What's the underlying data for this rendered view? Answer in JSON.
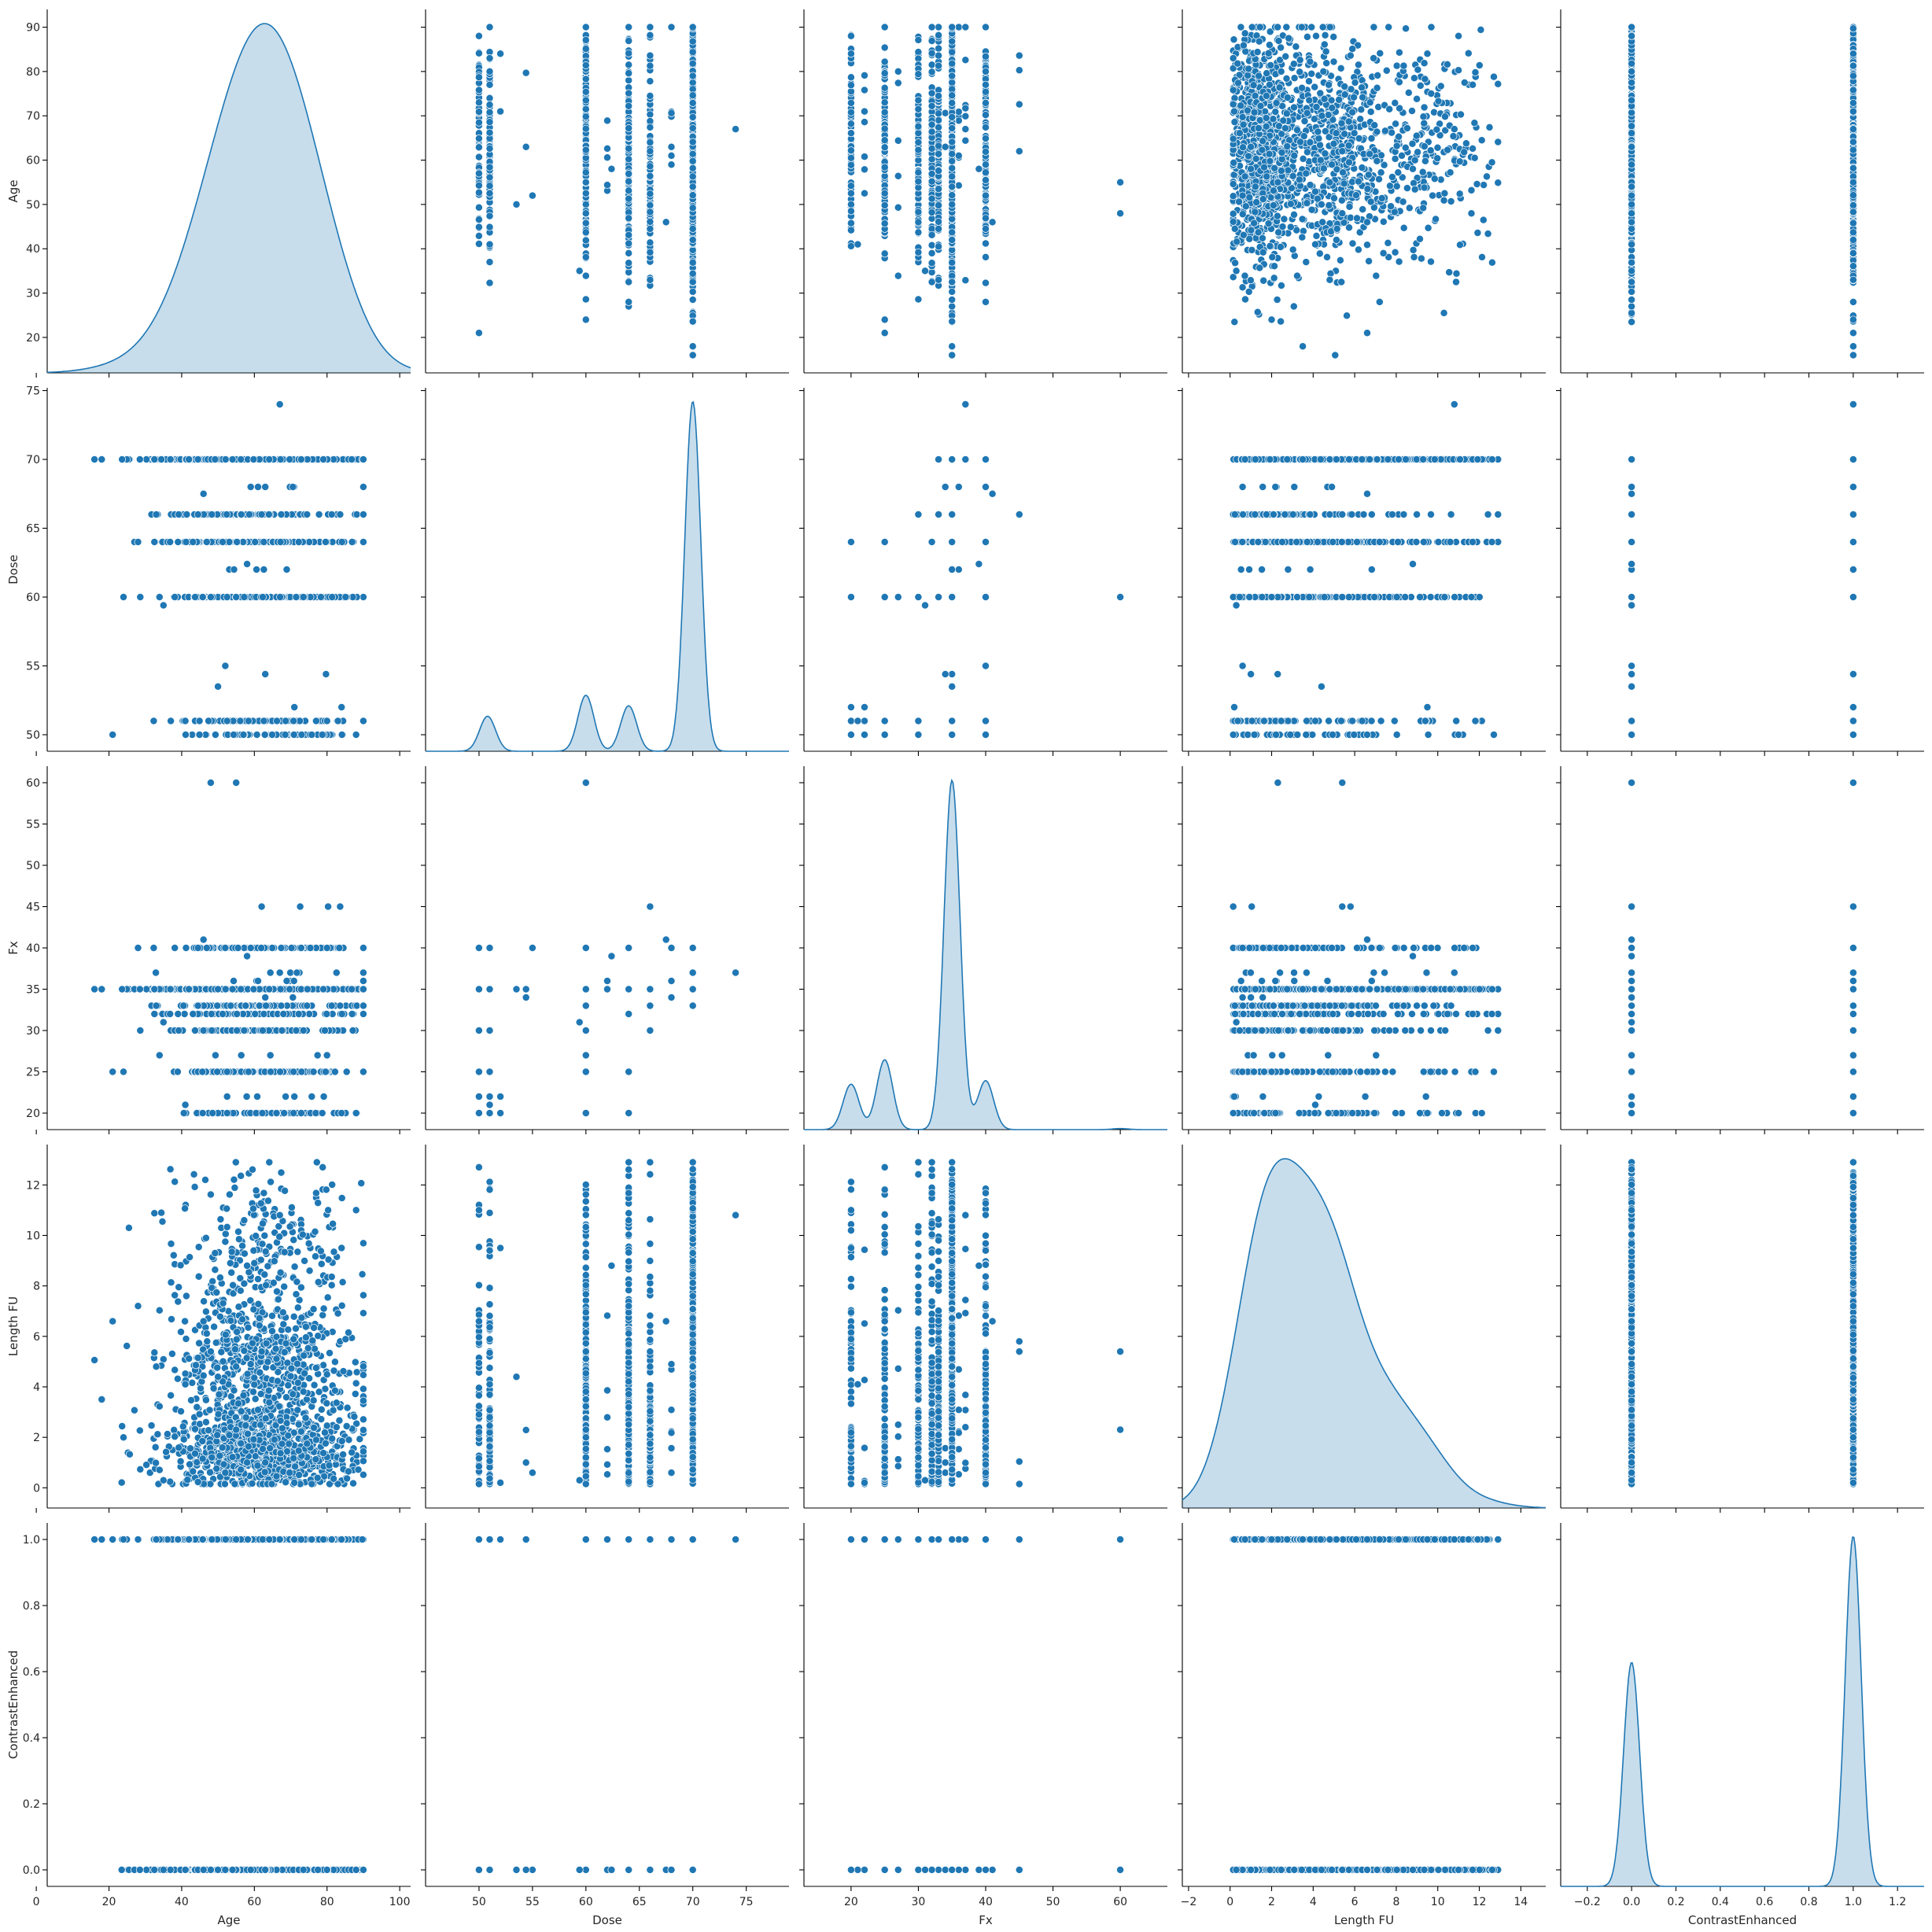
{
  "chart_data": {
    "type": "scatter",
    "layout": "pairplot",
    "variables": [
      "Age",
      "Dose",
      "Fx",
      "Length FU",
      "ContrastEnhanced"
    ],
    "diagonal": "kde",
    "color": "#1f77b4",
    "axes": {
      "Age": {
        "ticks": [
          0,
          20,
          40,
          60,
          80,
          100
        ],
        "tick_labels": [
          "0",
          "20",
          "40",
          "60",
          "80",
          "100"
        ],
        "y_ticks": [
          20,
          30,
          40,
          50,
          60,
          70,
          80,
          90
        ],
        "y_tick_labels": [
          "20",
          "30",
          "40",
          "50",
          "60",
          "70",
          "80",
          "90"
        ],
        "lim": [
          3,
          103
        ],
        "ylim": [
          12,
          94
        ]
      },
      "Dose": {
        "ticks": [
          50,
          55,
          60,
          65,
          70,
          75
        ],
        "tick_labels": [
          "50",
          "55",
          "60",
          "65",
          "70",
          "75"
        ],
        "lim": [
          45,
          79
        ],
        "ylim": [
          48.8,
          75.2
        ]
      },
      "Fx": {
        "ticks": [
          20,
          30,
          40,
          50,
          60
        ],
        "tick_labels": [
          "20",
          "30",
          "40",
          "50",
          "60"
        ],
        "y_ticks": [
          20,
          25,
          30,
          35,
          40,
          45,
          50,
          55,
          60
        ],
        "y_tick_labels": [
          "20",
          "25",
          "30",
          "35",
          "40",
          "45",
          "50",
          "55",
          "60"
        ],
        "lim": [
          13,
          67
        ],
        "ylim": [
          18,
          62
        ]
      },
      "Length FU": {
        "ticks": [
          -2,
          0,
          2,
          4,
          6,
          8,
          10,
          12,
          14
        ],
        "tick_labels": [
          "−2",
          "0",
          "2",
          "4",
          "6",
          "8",
          "10",
          "12",
          "14"
        ],
        "y_ticks": [
          0,
          2,
          4,
          6,
          8,
          10,
          12
        ],
        "y_tick_labels": [
          "0",
          "2",
          "4",
          "6",
          "8",
          "10",
          "12"
        ],
        "lim": [
          -2.3,
          15.2
        ],
        "ylim": [
          -0.8,
          13.6
        ]
      },
      "ContrastEnhanced": {
        "ticks": [
          -0.2,
          0,
          0.2,
          0.4,
          0.6,
          0.8,
          1.0,
          1.2
        ],
        "tick_labels": [
          "−0.2",
          "0.0",
          "0.2",
          "0.4",
          "0.6",
          "0.8",
          "1.0",
          "1.2"
        ],
        "y_ticks": [
          0,
          0.2,
          0.4,
          0.6,
          0.8,
          1.0
        ],
        "y_tick_labels": [
          "0.0",
          "0.2",
          "0.4",
          "0.6",
          "0.8",
          "1.0"
        ],
        "lim": [
          -0.32,
          1.32
        ],
        "ylim": [
          -0.05,
          1.05
        ]
      }
    },
    "distributions": {
      "Age": {
        "kde": [
          [
            19,
            0.02
          ],
          [
            27,
            0.04
          ],
          [
            36,
            0.18
          ],
          [
            45,
            0.55
          ],
          [
            53,
            0.88
          ],
          [
            60,
            1.0
          ],
          [
            66,
            0.92
          ],
          [
            72,
            0.74
          ],
          [
            78,
            0.48
          ],
          [
            84,
            0.22
          ],
          [
            90,
            0.05
          ]
        ]
      },
      "Dose": {
        "levels": [
          50,
          51,
          54.4,
          55,
          59.4,
          60,
          62,
          62.4,
          64,
          66,
          67.5,
          68,
          69.6,
          70,
          74
        ],
        "kde": [
          [
            50.8,
            0.1
          ],
          [
            60,
            0.16
          ],
          [
            64,
            0.13
          ],
          [
            70,
            1.0
          ]
        ]
      },
      "Fx": {
        "levels": [
          20,
          21,
          22,
          25,
          27,
          30,
          31,
          32,
          33,
          34,
          35,
          36,
          37,
          40,
          41,
          45,
          60
        ],
        "kde": [
          [
            20,
            0.13
          ],
          [
            25,
            0.2
          ],
          [
            35,
            1.0
          ],
          [
            40,
            0.14
          ],
          [
            60,
            0.003
          ]
        ]
      },
      "Length FU": {
        "kde": [
          [
            0.5,
            0.3
          ],
          [
            1.8,
            1.0
          ],
          [
            3.5,
            0.78
          ],
          [
            5.2,
            0.82
          ],
          [
            7.5,
            0.38
          ],
          [
            9.5,
            0.22
          ],
          [
            12,
            0.03
          ]
        ]
      },
      "ContrastEnhanced": {
        "levels": [
          0,
          1
        ],
        "kde": [
          [
            0,
            0.64
          ],
          [
            1,
            1.0
          ]
        ]
      }
    }
  }
}
